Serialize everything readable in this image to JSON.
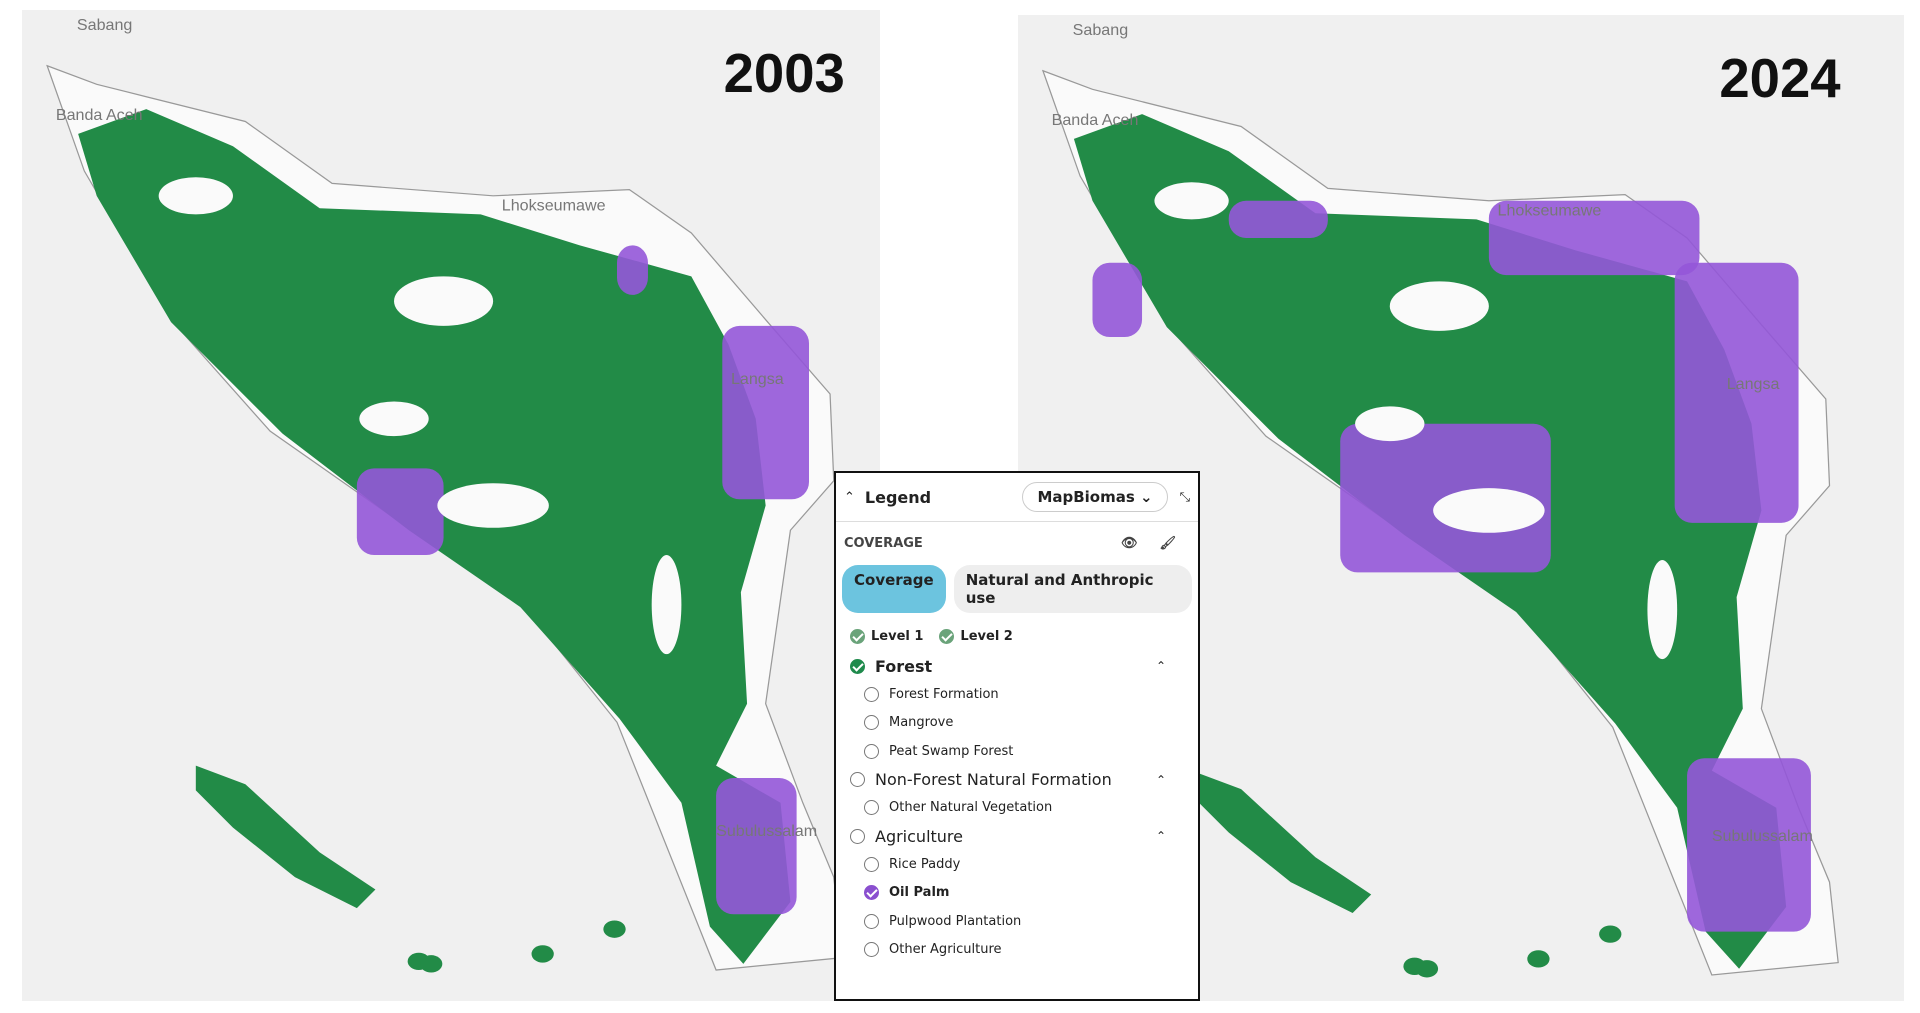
{
  "maps": [
    {
      "year": "2003",
      "places": [
        "Sabang",
        "Banda Aceh",
        "Lhokseumawe",
        "Langsa",
        "Subulussalam"
      ]
    },
    {
      "year": "2024",
      "places": [
        "Sabang",
        "Banda Aceh",
        "Lhokseumawe",
        "Langsa",
        "Subulussalam"
      ]
    }
  ],
  "legend": {
    "title": "Legend",
    "source": "MapBiomas",
    "section": "COVERAGE",
    "tabs": [
      "Coverage",
      "Natural and Anthropic use"
    ],
    "levels": [
      "Level 1",
      "Level 2"
    ],
    "groups": [
      {
        "name": "Forest",
        "checked": true,
        "items": [
          {
            "name": "Forest Formation",
            "checked": false
          },
          {
            "name": "Mangrove",
            "checked": false
          },
          {
            "name": "Peat Swamp Forest",
            "checked": false
          }
        ]
      },
      {
        "name": "Non-Forest Natural Formation",
        "checked": false,
        "items": [
          {
            "name": "Other Natural Vegetation",
            "checked": false
          }
        ]
      },
      {
        "name": "Agriculture",
        "checked": false,
        "items": [
          {
            "name": "Rice Paddy",
            "checked": false
          },
          {
            "name": "Oil Palm",
            "checked": true
          },
          {
            "name": "Pulpwood Plantation",
            "checked": false
          },
          {
            "name": "Other Agriculture",
            "checked": false
          }
        ]
      }
    ]
  }
}
